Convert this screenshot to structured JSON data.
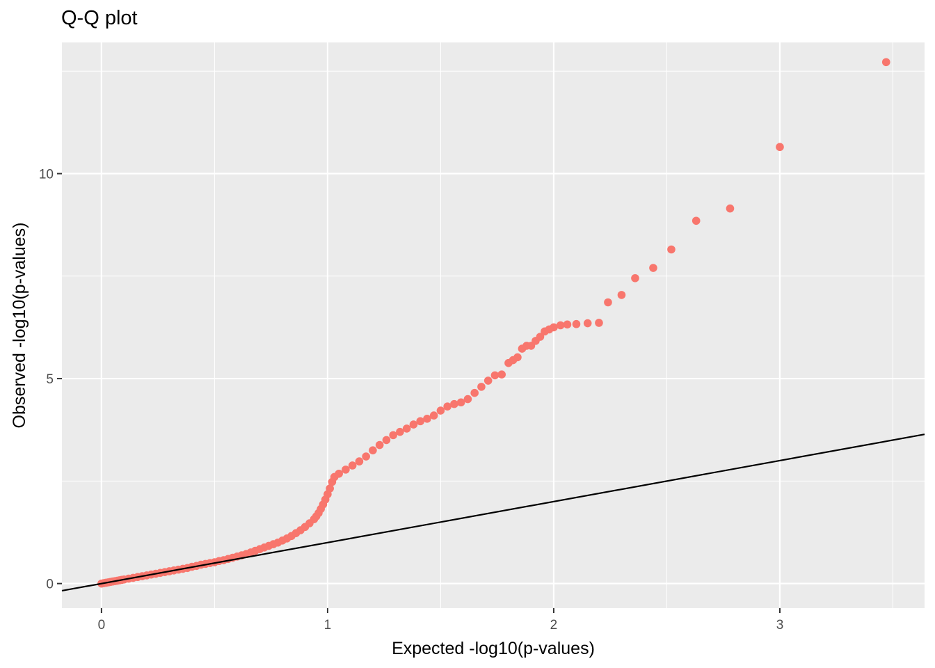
{
  "chart_data": {
    "type": "scatter",
    "title": "Q-Q plot",
    "xlabel": "Expected -log10(p-values)",
    "ylabel": "Observed -log10(p-values)",
    "xlim": [
      -0.175,
      3.64
    ],
    "ylim": [
      -0.6,
      13.2
    ],
    "x_ticks": [
      0,
      1,
      2,
      3
    ],
    "y_ticks": [
      0,
      5,
      10
    ],
    "grid": true,
    "point_color": "#F8766D",
    "reference_line": {
      "slope": 1,
      "intercept": 0,
      "color": "#000000"
    },
    "series": [
      {
        "points": [
          [
            0.0,
            0.0
          ],
          [
            0.01,
            0.01
          ],
          [
            0.02,
            0.02
          ],
          [
            0.03,
            0.03
          ],
          [
            0.04,
            0.04
          ],
          [
            0.05,
            0.05
          ],
          [
            0.06,
            0.06
          ],
          [
            0.07,
            0.07
          ],
          [
            0.08,
            0.08
          ],
          [
            0.09,
            0.09
          ],
          [
            0.1,
            0.1
          ],
          [
            0.12,
            0.12
          ],
          [
            0.14,
            0.14
          ],
          [
            0.16,
            0.16
          ],
          [
            0.18,
            0.18
          ],
          [
            0.2,
            0.2
          ],
          [
            0.22,
            0.22
          ],
          [
            0.24,
            0.24
          ],
          [
            0.26,
            0.26
          ],
          [
            0.28,
            0.28
          ],
          [
            0.3,
            0.3
          ],
          [
            0.32,
            0.32
          ],
          [
            0.34,
            0.34
          ],
          [
            0.36,
            0.36
          ],
          [
            0.38,
            0.38
          ],
          [
            0.4,
            0.41
          ],
          [
            0.42,
            0.43
          ],
          [
            0.44,
            0.46
          ],
          [
            0.46,
            0.48
          ],
          [
            0.48,
            0.5
          ],
          [
            0.5,
            0.52
          ],
          [
            0.52,
            0.55
          ],
          [
            0.54,
            0.57
          ],
          [
            0.56,
            0.6
          ],
          [
            0.58,
            0.63
          ],
          [
            0.6,
            0.66
          ],
          [
            0.62,
            0.69
          ],
          [
            0.64,
            0.72
          ],
          [
            0.66,
            0.76
          ],
          [
            0.68,
            0.8
          ],
          [
            0.7,
            0.84
          ],
          [
            0.72,
            0.88
          ],
          [
            0.74,
            0.92
          ],
          [
            0.76,
            0.96
          ],
          [
            0.78,
            1.0
          ],
          [
            0.8,
            1.05
          ],
          [
            0.82,
            1.1
          ],
          [
            0.84,
            1.16
          ],
          [
            0.86,
            1.23
          ],
          [
            0.88,
            1.3
          ],
          [
            0.9,
            1.38
          ],
          [
            0.92,
            1.47
          ],
          [
            0.94,
            1.57
          ],
          [
            0.95,
            1.64
          ],
          [
            0.96,
            1.72
          ],
          [
            0.97,
            1.82
          ],
          [
            0.98,
            1.93
          ],
          [
            0.99,
            2.05
          ],
          [
            1.0,
            2.18
          ],
          [
            1.01,
            2.32
          ],
          [
            1.02,
            2.48
          ],
          [
            1.03,
            2.6
          ],
          [
            1.05,
            2.68
          ],
          [
            1.08,
            2.78
          ],
          [
            1.11,
            2.88
          ],
          [
            1.14,
            2.98
          ],
          [
            1.17,
            3.1
          ],
          [
            1.2,
            3.25
          ],
          [
            1.23,
            3.38
          ],
          [
            1.26,
            3.5
          ],
          [
            1.29,
            3.62
          ],
          [
            1.32,
            3.7
          ],
          [
            1.35,
            3.78
          ],
          [
            1.38,
            3.88
          ],
          [
            1.41,
            3.96
          ],
          [
            1.44,
            4.02
          ],
          [
            1.47,
            4.1
          ],
          [
            1.5,
            4.22
          ],
          [
            1.53,
            4.32
          ],
          [
            1.56,
            4.38
          ],
          [
            1.59,
            4.42
          ],
          [
            1.62,
            4.5
          ],
          [
            1.65,
            4.65
          ],
          [
            1.68,
            4.8
          ],
          [
            1.71,
            4.95
          ],
          [
            1.74,
            5.08
          ],
          [
            1.77,
            5.1
          ],
          [
            1.8,
            5.38
          ],
          [
            1.82,
            5.45
          ],
          [
            1.84,
            5.52
          ],
          [
            1.86,
            5.73
          ],
          [
            1.88,
            5.8
          ],
          [
            1.9,
            5.8
          ],
          [
            1.92,
            5.92
          ],
          [
            1.94,
            6.02
          ],
          [
            1.96,
            6.15
          ],
          [
            1.98,
            6.2
          ],
          [
            2.0,
            6.25
          ],
          [
            2.03,
            6.3
          ],
          [
            2.06,
            6.32
          ],
          [
            2.1,
            6.33
          ],
          [
            2.15,
            6.35
          ],
          [
            2.2,
            6.36
          ],
          [
            2.24,
            6.86
          ],
          [
            2.3,
            7.04
          ],
          [
            2.36,
            7.45
          ],
          [
            2.44,
            7.7
          ],
          [
            2.52,
            8.15
          ],
          [
            2.63,
            8.85
          ],
          [
            2.78,
            9.15
          ],
          [
            3.0,
            10.65
          ],
          [
            3.47,
            12.72
          ]
        ]
      }
    ]
  }
}
